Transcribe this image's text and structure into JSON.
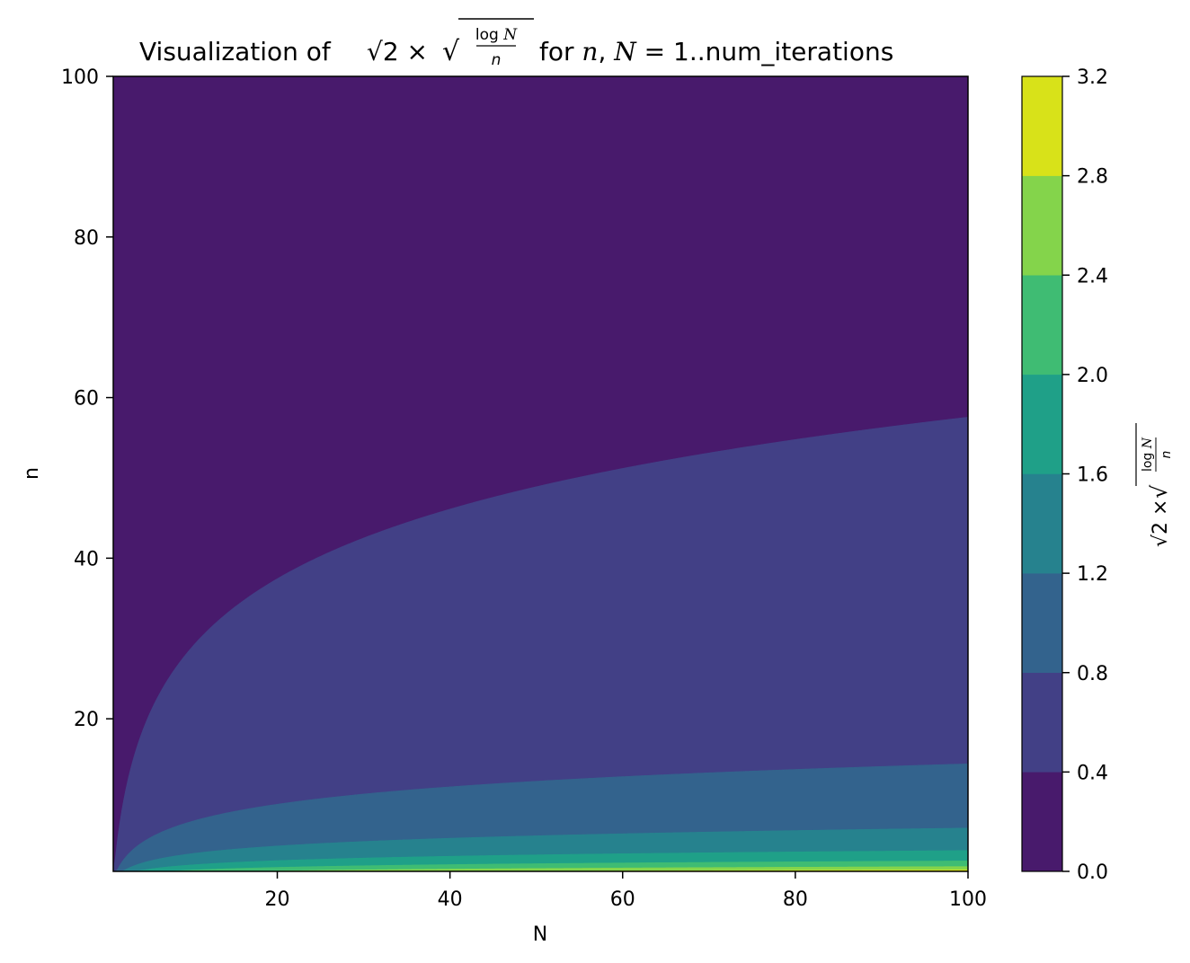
{
  "chart_data": {
    "type": "contourf",
    "title": {
      "prefix": "Visualization of ",
      "formula": "√2 × √(log N / n)",
      "suffix": " for n, N = 1..num_iterations"
    },
    "xlabel": "N",
    "ylabel": "n",
    "xlim": [
      1,
      100
    ],
    "ylim": [
      1,
      100
    ],
    "xticks": [
      20,
      40,
      60,
      80,
      100
    ],
    "yticks": [
      20,
      40,
      60,
      80,
      100
    ],
    "colorbar": {
      "label": "√2 × √(log N / n)",
      "levels": [
        0.0,
        0.4,
        0.8,
        1.2,
        1.6,
        2.0,
        2.4,
        2.8,
        3.2
      ],
      "tick_labels": [
        "0.0",
        "0.4",
        "0.8",
        "1.2",
        "1.6",
        "2.0",
        "2.4",
        "2.8",
        "3.2"
      ],
      "colors": [
        "#481a6c",
        "#424086",
        "#33638d",
        "#26828e",
        "#1fa088",
        "#3fbc73",
        "#84d44b",
        "#d8e219"
      ]
    },
    "function": "sqrt(2) * sqrt(log(N) / n)",
    "grid": false
  }
}
